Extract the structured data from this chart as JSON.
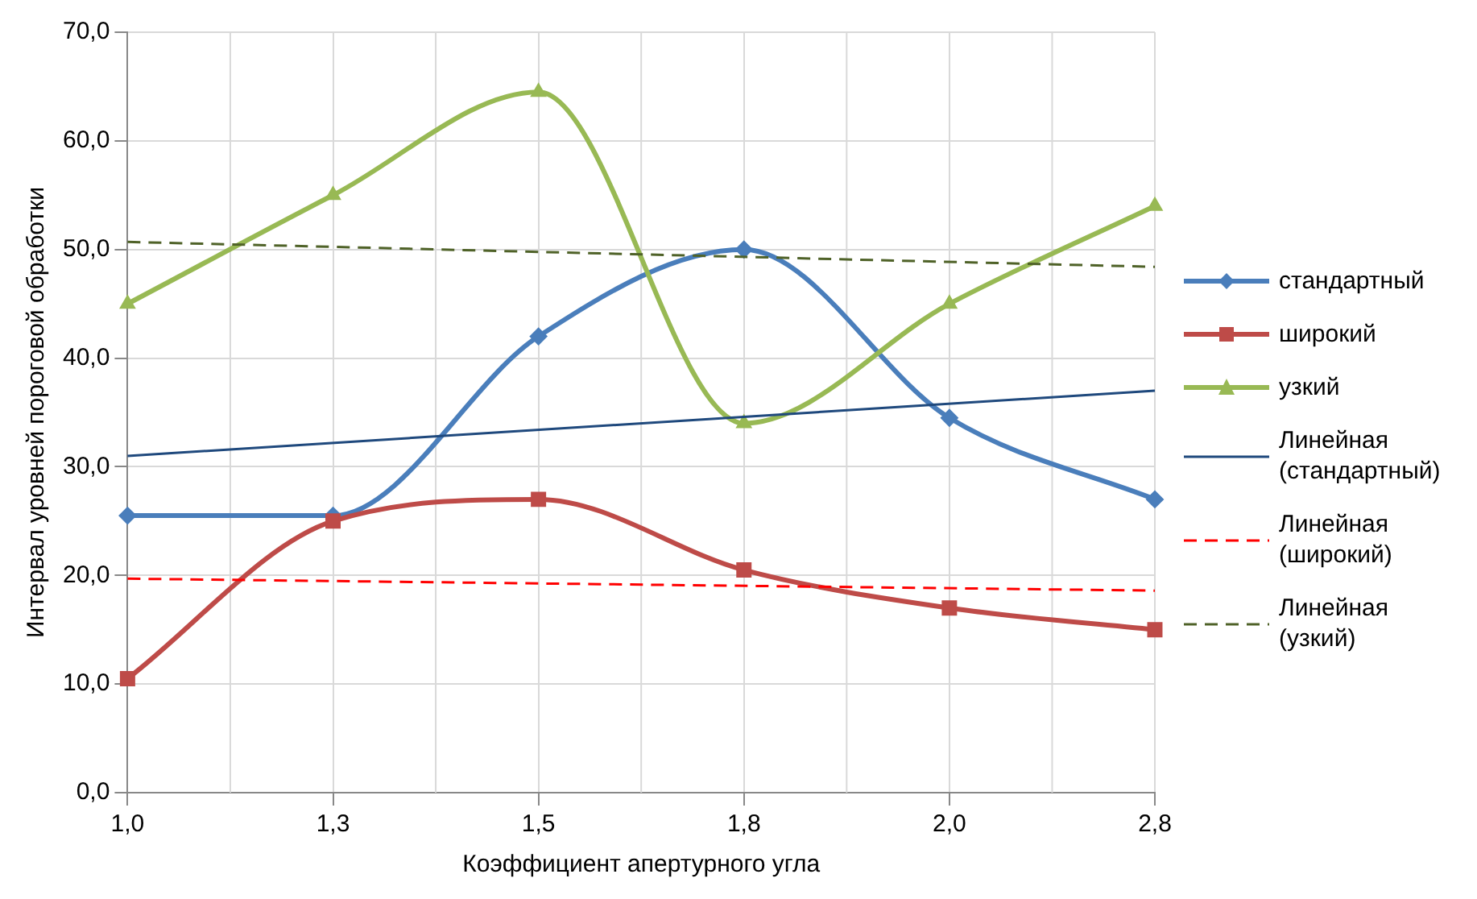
{
  "chart_data": {
    "type": "line",
    "xlabel": "Коэффициент апертурного угла",
    "ylabel": "Интервал уровней пороговой обработки",
    "categories": [
      "1,0",
      "1,3",
      "1,5",
      "1,8",
      "2,0",
      "2,8"
    ],
    "ylim": [
      0,
      70
    ],
    "yticks": [
      {
        "value": 0,
        "label": "0,0"
      },
      {
        "value": 10,
        "label": "10,0"
      },
      {
        "value": 20,
        "label": "20,0"
      },
      {
        "value": 30,
        "label": "30,0"
      },
      {
        "value": 40,
        "label": "40,0"
      },
      {
        "value": 50,
        "label": "50,0"
      },
      {
        "value": 60,
        "label": "60,0"
      },
      {
        "value": 70,
        "label": "70,0"
      }
    ],
    "grid": true,
    "legend": "right",
    "series": [
      {
        "name": "стандартный",
        "color": "#4a7ebb",
        "marker": "diamond",
        "values": [
          25.5,
          25.5,
          42,
          50,
          34.5,
          27
        ]
      },
      {
        "name": "широкий",
        "color": "#be4b48",
        "marker": "square",
        "values": [
          10.5,
          25,
          27,
          20.5,
          17,
          15
        ]
      },
      {
        "name": "узкий",
        "color": "#98b954",
        "marker": "triangle",
        "values": [
          45,
          55,
          64.5,
          34,
          45,
          54
        ]
      },
      {
        "name": "Линейная (стандартный)",
        "color": "#1f497d",
        "marker": "none",
        "line_style": "solid",
        "x": [
          "1,0",
          "2,8"
        ],
        "values": [
          31,
          37
        ]
      },
      {
        "name": "Линейная (широкий)",
        "color": "#ff0000",
        "marker": "none",
        "line_style": "dashed",
        "x": [
          "1,0",
          "2,8"
        ],
        "values": [
          19.7,
          18.6
        ]
      },
      {
        "name": "Линейная (узкий)",
        "color": "#4f6228",
        "marker": "none",
        "line_style": "dashed",
        "x": [
          "1,0",
          "2,8"
        ],
        "values": [
          50.7,
          48.4
        ]
      }
    ]
  }
}
